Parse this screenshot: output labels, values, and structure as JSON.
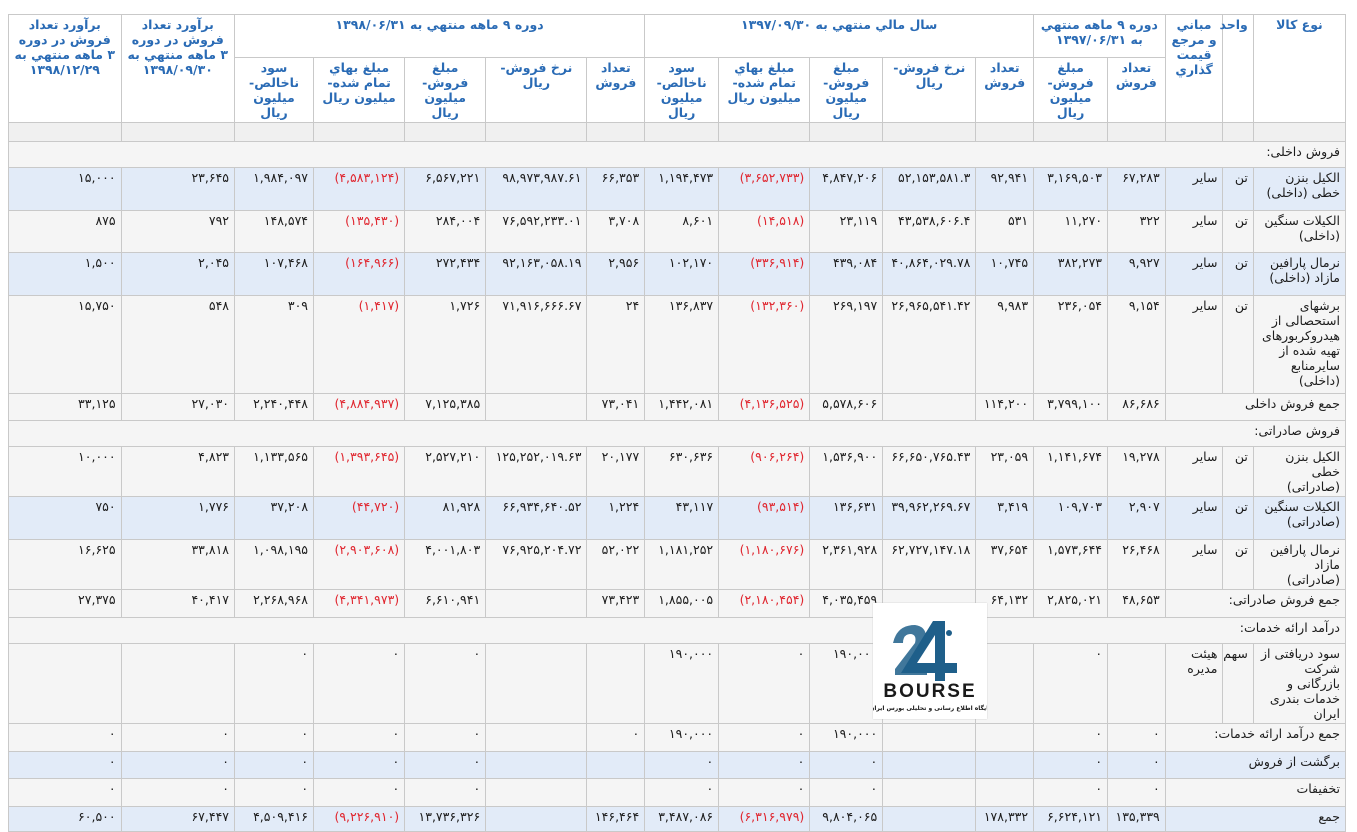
{
  "headers": {
    "product_type": "نوع کالا",
    "unit": "واحد",
    "pricing_basis": "مباني و مرجع قيمت گذاري",
    "period_1397_06_31": "دوره ۹ ماهه منتهي به ۱۳۹۷/۰۶/۳۱",
    "fiscal_1397_09_30": "سال مالي منتهي به ۱۳۹۷/۰۹/۳۰",
    "period_1398_06_31": "دوره ۹ ماهه منتهي به ۱۳۹۸/۰۶/۳۱",
    "estimate_1398_09_30": "برآورد تعداد فروش در دوره ۳ ماهه منتهي به ۱۳۹۸/۰۹/۳۰",
    "estimate_1398_12_29": "برآورد تعداد فروش در دوره ۳ ماهه منتهي به ۱۳۹۸/۱۲/۲۹",
    "sub": {
      "count": "تعداد فروش",
      "amount": "مبلغ فروش- ميليون ريال",
      "rate": "نرخ فروش- ريال",
      "cost": "مبلغ بهاي تمام شده- ميليون ريال",
      "profit": "سود ناخالص- ميليون ريال"
    }
  },
  "rows": [
    {
      "type": "section",
      "label": "فروش داخلی:"
    },
    {
      "type": "item",
      "shade": "blue",
      "name": "الکیل بنزن خطی (داخلی)",
      "unit": "تن",
      "basis": "سایر",
      "v": [
        "۶۷,۲۸۳",
        "۳,۱۶۹,۵۰۳",
        "۹۲,۹۴۱",
        "۵۲,۱۵۳,۵۸۱.۳",
        "۴,۸۴۷,۲۰۶",
        "(۳,۶۵۲,۷۳۳)",
        "۱,۱۹۴,۴۷۳",
        "۶۶,۳۵۳",
        "۹۸,۹۷۳,۹۸۷.۶۱",
        "۶,۵۶۷,۲۲۱",
        "(۴,۵۸۳,۱۲۴)",
        "۱,۹۸۴,۰۹۷",
        "۲۳,۶۴۵",
        "۱۵,۰۰۰"
      ]
    },
    {
      "type": "item",
      "shade": "white",
      "name": "الکیلات سنگین (داخلی)",
      "unit": "تن",
      "basis": "سایر",
      "v": [
        "۳۲۲",
        "۱۱,۲۷۰",
        "۵۳۱",
        "۴۳,۵۳۸,۶۰۶.۴",
        "۲۳,۱۱۹",
        "(۱۴,۵۱۸)",
        "۸,۶۰۱",
        "۳,۷۰۸",
        "۷۶,۵۹۲,۲۳۳.۰۱",
        "۲۸۴,۰۰۴",
        "(۱۳۵,۴۳۰)",
        "۱۴۸,۵۷۴",
        "۷۹۲",
        "۸۷۵"
      ]
    },
    {
      "type": "item",
      "shade": "blue",
      "name": "نرمال پارافین مازاد (داخلی)",
      "unit": "تن",
      "basis": "سایر",
      "v": [
        "۹,۹۲۷",
        "۳۸۲,۲۷۳",
        "۱۰,۷۴۵",
        "۴۰,۸۶۴,۰۲۹.۷۸",
        "۴۳۹,۰۸۴",
        "(۳۳۶,۹۱۴)",
        "۱۰۲,۱۷۰",
        "۲,۹۵۶",
        "۹۲,۱۶۳,۰۵۸.۱۹",
        "۲۷۲,۴۳۴",
        "(۱۶۴,۹۶۶)",
        "۱۰۷,۴۶۸",
        "۲,۰۴۵",
        "۱,۵۰۰"
      ]
    },
    {
      "type": "item",
      "shade": "white",
      "name": "برشهای استحصالی از هیدروکربورهای تهیه شده از سایرمنابع (داخلی)",
      "unit": "تن",
      "basis": "سایر",
      "v": [
        "۹,۱۵۴",
        "۲۳۶,۰۵۴",
        "۹,۹۸۳",
        "۲۶,۹۶۵,۵۴۱.۴۲",
        "۲۶۹,۱۹۷",
        "(۱۳۲,۳۶۰)",
        "۱۳۶,۸۳۷",
        "۲۴",
        "۷۱,۹۱۶,۶۶۶.۶۷",
        "۱,۷۲۶",
        "(۱,۴۱۷)",
        "۳۰۹",
        "۵۴۸",
        "۱۵,۷۵۰"
      ]
    },
    {
      "type": "total",
      "shade": "white",
      "label": "جمع فروش داخلی",
      "v": [
        "۸۶,۶۸۶",
        "۳,۷۹۹,۱۰۰",
        "۱۱۴,۲۰۰",
        "",
        "۵,۵۷۸,۶۰۶",
        "(۴,۱۳۶,۵۲۵)",
        "۱,۴۴۲,۰۸۱",
        "۷۳,۰۴۱",
        "",
        "۷,۱۲۵,۳۸۵",
        "(۴,۸۸۴,۹۳۷)",
        "۲,۲۴۰,۴۴۸",
        "۲۷,۰۳۰",
        "۳۳,۱۲۵"
      ]
    },
    {
      "type": "section",
      "shade": "blue",
      "label": "فروش صادراتی:"
    },
    {
      "type": "item",
      "shade": "white",
      "name": "الکیل بنزن خطی (صادراتی)",
      "unit": "تن",
      "basis": "سایر",
      "v": [
        "۱۹,۲۷۸",
        "۱,۱۴۱,۶۷۴",
        "۲۳,۰۵۹",
        "۶۶,۶۵۰,۷۶۵.۴۳",
        "۱,۵۳۶,۹۰۰",
        "(۹۰۶,۲۶۴)",
        "۶۳۰,۶۳۶",
        "۲۰,۱۷۷",
        "۱۲۵,۲۵۲,۰۱۹.۶۳",
        "۲,۵۲۷,۲۱۰",
        "(۱,۳۹۳,۶۴۵)",
        "۱,۱۳۳,۵۶۵",
        "۴,۸۲۳",
        "۱۰,۰۰۰"
      ]
    },
    {
      "type": "item",
      "shade": "blue",
      "name": "الکیلات سنگین (صادراتی)",
      "unit": "تن",
      "basis": "سایر",
      "v": [
        "۲,۹۰۷",
        "۱۰۹,۷۰۳",
        "۳,۴۱۹",
        "۳۹,۹۶۲,۲۶۹.۶۷",
        "۱۳۶,۶۳۱",
        "(۹۳,۵۱۴)",
        "۴۳,۱۱۷",
        "۱,۲۲۴",
        "۶۶,۹۳۴,۶۴۰.۵۲",
        "۸۱,۹۲۸",
        "(۴۴,۷۲۰)",
        "۳۷,۲۰۸",
        "۱,۷۷۶",
        "۷۵۰"
      ]
    },
    {
      "type": "item",
      "shade": "white",
      "name": "نرمال پارافین مازاد (صادراتی)",
      "unit": "تن",
      "basis": "سایر",
      "v": [
        "۲۶,۴۶۸",
        "۱,۵۷۳,۶۴۴",
        "۳۷,۶۵۴",
        "۶۲,۷۲۷,۱۴۷.۱۸",
        "۲,۳۶۱,۹۲۸",
        "(۱,۱۸۰,۶۷۶)",
        "۱,۱۸۱,۲۵۲",
        "۵۲,۰۲۲",
        "۷۶,۹۲۵,۲۰۴.۷۲",
        "۴,۰۰۱,۸۰۳",
        "(۲,۹۰۳,۶۰۸)",
        "۱,۰۹۸,۱۹۵",
        "۳۳,۸۱۸",
        "۱۶,۶۲۵"
      ]
    },
    {
      "type": "total",
      "shade": "white",
      "label": "جمع فروش صادراتی:",
      "v": [
        "۴۸,۶۵۳",
        "۲,۸۲۵,۰۲۱",
        "۶۴,۱۳۲",
        "",
        "۴,۰۳۵,۴۵۹",
        "(۲,۱۸۰,۴۵۴)",
        "۱,۸۵۵,۰۰۵",
        "۷۳,۴۲۳",
        "",
        "۶,۶۱۰,۹۴۱",
        "(۴,۳۴۱,۹۷۳)",
        "۲,۲۶۸,۹۶۸",
        "۴۰,۴۱۷",
        "۲۷,۳۷۵"
      ]
    },
    {
      "type": "section",
      "shade": "blue",
      "label": "درآمد ارائه خدمات:"
    },
    {
      "type": "item",
      "shade": "white",
      "name": "سود دریافتی از شرکت بازرگانی و خدمات بندری ایران",
      "unit": "سهم",
      "basis": "هیئت مدیره",
      "v": [
        "",
        "۰",
        "",
        "",
        "۱۹۰,۰۰۰",
        "۰",
        "۱۹۰,۰۰۰",
        "",
        "",
        "۰",
        "۰",
        "۰",
        "",
        ""
      ]
    },
    {
      "type": "total",
      "shade": "white",
      "label": "جمع درآمد ارائه خدمات:",
      "v": [
        "۰",
        "۰",
        "",
        "",
        "۱۹۰,۰۰۰",
        "۰",
        "۱۹۰,۰۰۰",
        "۰",
        "",
        "۰",
        "۰",
        "۰",
        "۰",
        "۰"
      ]
    },
    {
      "type": "total",
      "shade": "blue",
      "label": "برگشت از فروش",
      "v": [
        "۰",
        "۰",
        "",
        "",
        "۰",
        "۰",
        "۰",
        "",
        "",
        "۰",
        "۰",
        "۰",
        "۰",
        "۰"
      ]
    },
    {
      "type": "total",
      "shade": "white",
      "label": "تخفیفات",
      "v": [
        "۰",
        "۰",
        "",
        "",
        "۰",
        "۰",
        "۰",
        "",
        "",
        "۰",
        "۰",
        "۰",
        "۰",
        "۰"
      ]
    },
    {
      "type": "total",
      "shade": "blue",
      "label": "جمع",
      "v": [
        "۱۳۵,۳۳۹",
        "۶,۶۲۴,۱۲۱",
        "۱۷۸,۳۳۲",
        "",
        "۹,۸۰۴,۰۶۵",
        "(۶,۳۱۶,۹۷۹)",
        "۳,۴۸۷,۰۸۶",
        "۱۴۶,۴۶۴",
        "",
        "۱۳,۷۳۶,۳۲۶",
        "(۹,۲۲۶,۹۱۰)",
        "۴,۵۰۹,۴۱۶",
        "۶۷,۴۴۷",
        "۶۰,۵۰۰"
      ]
    }
  ],
  "logo": {
    "word": "BOURSE",
    "tagline": "پایگاه اطلاع رسانی و تحلیلی بورس ایران",
    "colors": {
      "primary": "#1f5f8a",
      "text": "#1a1a1a"
    },
    "icon": "bourse24-logo-icon"
  },
  "colors": {
    "header_text": "#2a6bb5",
    "negative": "#e0262f",
    "row_blue": "#e2ebf8",
    "row_white": "#f5f5f5"
  }
}
